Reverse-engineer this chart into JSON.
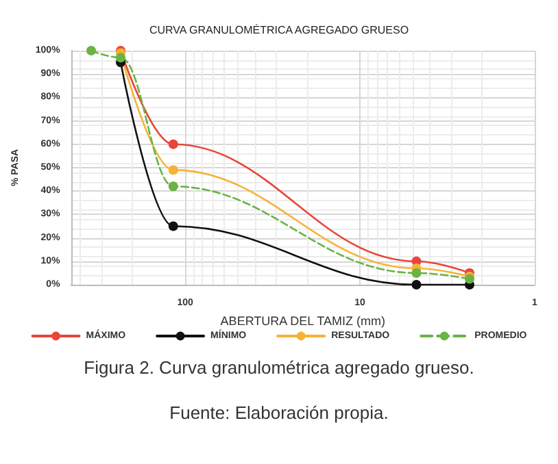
{
  "chart_data": {
    "type": "line",
    "title": "CURVA GRANULOMÉTRICA AGREGADO GRUESO",
    "xlabel": "ABERTURA DEL TAMIZ (mm)",
    "ylabel": "% PASA",
    "log": "x",
    "xlim": [
      450,
      1
    ],
    "xticks": [
      100,
      10,
      1
    ],
    "ylim": [
      0,
      100
    ],
    "yticks": [
      {
        "value": 0,
        "label": "0%"
      },
      {
        "value": 10,
        "label": "10%"
      },
      {
        "value": 20,
        "label": "20%"
      },
      {
        "value": 30,
        "label": "30%"
      },
      {
        "value": 40,
        "label": "40%"
      },
      {
        "value": 50,
        "label": "50%"
      },
      {
        "value": 60,
        "label": "60%"
      },
      {
        "value": 70,
        "label": "70%"
      },
      {
        "value": 80,
        "label": "80%"
      },
      {
        "value": 90,
        "label": "90%"
      },
      {
        "value": 100,
        "label": "100%"
      }
    ],
    "grid": true,
    "legend": "bottom",
    "marker": "circle",
    "series": [
      {
        "name": "MÁXIMO",
        "color": "#e8463a",
        "line_style": "solid",
        "x": [
          234,
          117,
          4.75,
          2.36
        ],
        "values": [
          100,
          60,
          10,
          5
        ]
      },
      {
        "name": "MÍNIMO",
        "color": "#111111",
        "line_style": "solid",
        "x": [
          234,
          117,
          4.75,
          2.36
        ],
        "values": [
          95,
          25,
          0,
          0
        ]
      },
      {
        "name": "RESULTADO",
        "color": "#f5b335",
        "line_style": "solid",
        "x": [
          234,
          117,
          4.75,
          2.36
        ],
        "values": [
          99,
          49,
          7,
          3.5
        ]
      },
      {
        "name": "PROMEDIO",
        "color": "#6ab344",
        "line_style": "dashed",
        "x": [
          345,
          234,
          117,
          4.75,
          2.36
        ],
        "values": [
          100,
          97,
          42,
          5,
          2.5
        ]
      }
    ],
    "annotations": [
      "Figura 2. Curva granulométrica agregado grueso.",
      "Fuente: Elaboración propia."
    ]
  }
}
